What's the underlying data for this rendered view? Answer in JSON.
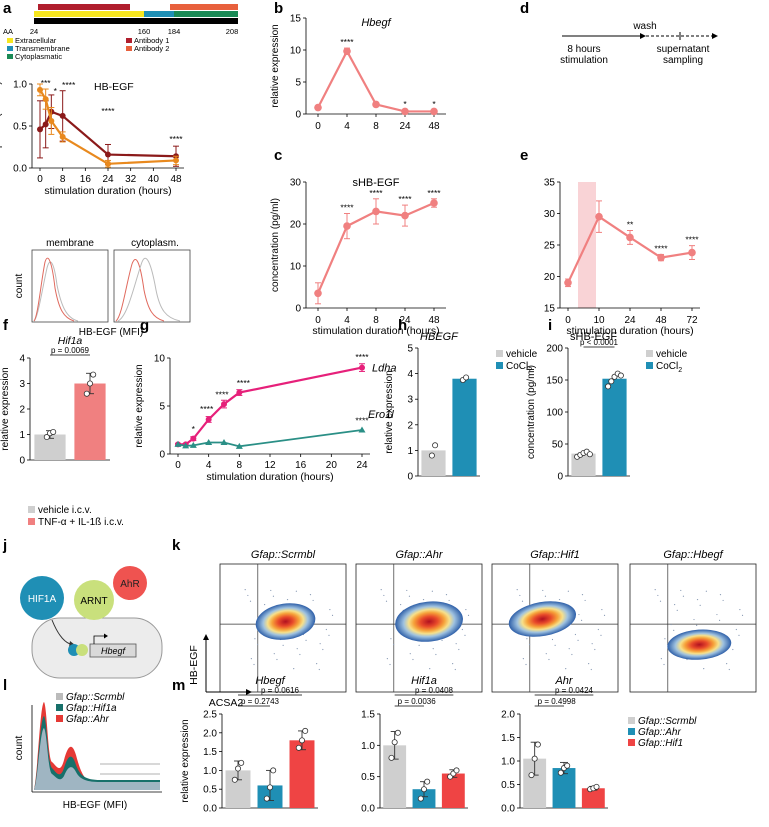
{
  "colors": {
    "salmon": "#f08080",
    "maroon": "#8b1a1a",
    "orange": "#e8891e",
    "magenta": "#e6207a",
    "teal": "#2a8f86",
    "grey": "#cfcfcf",
    "blue_bar": "#1f8fb5",
    "red_bar": "#ef4444",
    "shade": "#f9d3d6"
  },
  "panel_labels": {
    "a": "a",
    "b": "b",
    "c": "c",
    "d": "d",
    "e": "e",
    "f": "f",
    "g": "g",
    "h": "h",
    "i": "i",
    "j": "j",
    "k": "k",
    "l": "l",
    "m": "m"
  },
  "domain_map": {
    "aa_label": "AA",
    "ticks": [
      "24",
      "160",
      "184",
      "208"
    ],
    "legend": [
      "Extracellular",
      "Transmembrane",
      "Cytoplasmatic",
      "Antibody 1",
      "Antibody 2"
    ],
    "legend_colors": [
      "#f6e61f",
      "#1f8fb5",
      "#1a8a55",
      "#b01e2d",
      "#e8603c"
    ]
  },
  "flow_small": {
    "labels": [
      "membrane",
      "cytoplasm."
    ],
    "ylabel": "count",
    "xlabel": "HB-EGF (MFI)"
  },
  "panel_d": {
    "wash": "wash",
    "step1_line1": "8 hours",
    "step1_line2": "stimulation",
    "step2_line1": "supernatant",
    "step2_line2": "sampling"
  },
  "panel_j": {
    "hif1a": "HIF1A",
    "arnt": "ARNT",
    "ahr": "AhR",
    "gene": "Hbegf"
  },
  "panel_k": {
    "titles": [
      "Gfap::Scrmbl",
      "Gfap::Ahr",
      "Gfap::Hif1",
      "Gfap::Hbegf"
    ],
    "ylabel": "HB-EGF",
    "xlabel": "ACSA2"
  },
  "panel_l": {
    "legend": [
      "Gfap::Scrmbl",
      "Gfap::Hif1a",
      "Gfap::Ahr"
    ],
    "ylabel": "count",
    "xlabel": "HB-EGF (MFI)"
  },
  "chart_data": [
    {
      "id": "a",
      "type": "line",
      "title": "HB-EGF",
      "xlabel": "stimulation duration (hours)",
      "ylabel": "% of parent (scaled)",
      "xticks": [
        0,
        8,
        16,
        24,
        32,
        40,
        48
      ],
      "yticks": [
        "0.0",
        "0.5",
        "1.0"
      ],
      "xlim": [
        0,
        48
      ],
      "ylim": [
        0,
        1
      ],
      "series": [
        {
          "name": "Antibody 1",
          "color": "maroon",
          "x": [
            0,
            2,
            4,
            8,
            24,
            48
          ],
          "y": [
            0.46,
            0.52,
            0.67,
            0.62,
            0.16,
            0.14
          ],
          "err": [
            0.34,
            0.28,
            0.2,
            0.3,
            0.12,
            0.12
          ]
        },
        {
          "name": "Antibody 2",
          "color": "orange",
          "x": [
            0,
            2,
            4,
            8,
            24,
            48
          ],
          "y": [
            0.93,
            0.82,
            0.56,
            0.37,
            0.05,
            0.09
          ],
          "err": [
            0.07,
            0.12,
            0.16,
            0.06,
            0.04,
            0.05
          ]
        }
      ],
      "annotations": [
        {
          "x": 2,
          "text": "***"
        },
        {
          "x": 4,
          "text": "*"
        },
        {
          "x": 8,
          "text": "****"
        },
        {
          "x": 24,
          "text": "****"
        },
        {
          "x": 48,
          "text": "****"
        }
      ]
    },
    {
      "id": "b",
      "type": "line",
      "title": "Hbegf",
      "xlabel": "",
      "ylabel": "relative expression",
      "categories": [
        "0",
        "4",
        "8",
        "24",
        "48"
      ],
      "yticks": [
        "0",
        "5",
        "10",
        "15"
      ],
      "ylim": [
        0,
        15
      ],
      "series": [
        {
          "name": "Hbegf",
          "color": "salmon",
          "values": [
            1.0,
            9.8,
            1.5,
            0.4,
            0.4
          ],
          "err": [
            0.2,
            0.5,
            0.2,
            0.2,
            0.2
          ]
        }
      ],
      "annotations": [
        "",
        "****",
        "",
        "*",
        "*"
      ]
    },
    {
      "id": "c",
      "type": "line",
      "title": "sHB-EGF",
      "xlabel": "stimulation duration (hours)",
      "ylabel": "concentration (pg/ml)",
      "categories": [
        "0",
        "4",
        "8",
        "24",
        "48"
      ],
      "yticks": [
        "0",
        "10",
        "20",
        "30"
      ],
      "ylim": [
        0,
        30
      ],
      "series": [
        {
          "name": "sHB-EGF",
          "color": "salmon",
          "values": [
            3.5,
            19.5,
            23,
            22,
            25
          ],
          "err": [
            2.5,
            3,
            3,
            2.5,
            1
          ]
        }
      ],
      "annotations": [
        "",
        "****",
        "****",
        "****",
        "****"
      ]
    },
    {
      "id": "e",
      "type": "line",
      "title": "",
      "xlabel": "stimulation duration (hours)",
      "ylabel": "",
      "xticks": [
        0,
        10,
        24,
        48,
        72
      ],
      "xpos": [
        0,
        1,
        2,
        3,
        4
      ],
      "yticks": [
        "15",
        "20",
        "25",
        "30",
        "35"
      ],
      "ylim": [
        15,
        35
      ],
      "series": [
        {
          "name": "sHB-EGF",
          "color": "salmon",
          "x": [
            0,
            1,
            2,
            3,
            4
          ],
          "y": [
            19,
            29.5,
            26.2,
            23,
            23.8
          ],
          "err": [
            0.6,
            2.5,
            1.1,
            0.5,
            1.1
          ]
        }
      ],
      "annotations": [
        "",
        "",
        "**",
        "****",
        "****"
      ]
    },
    {
      "id": "f",
      "type": "bar",
      "title": "Hif1a",
      "pvalue": "p = 0.0069",
      "ylabel": "relative expression",
      "yticks": [
        "0",
        "1",
        "2",
        "3",
        "4"
      ],
      "ylim": [
        0,
        4
      ],
      "categories": [
        "vehicle i.c.v.",
        "TNF-α + IL-1ß i.c.v."
      ],
      "values": [
        1.0,
        3.0
      ],
      "err": [
        0.15,
        0.4
      ],
      "points": [
        [
          0.9,
          1.05,
          1.1
        ],
        [
          2.6,
          3.0,
          3.35
        ]
      ],
      "colors": [
        "grey",
        "salmon"
      ]
    },
    {
      "id": "g",
      "type": "line",
      "title": "",
      "xlabel": "stimulation duration (hours)",
      "ylabel": "relative expression",
      "xticks": [
        0,
        4,
        8,
        12,
        16,
        20,
        24
      ],
      "yticks": [
        "0",
        "5",
        "10"
      ],
      "xlim": [
        0,
        24
      ],
      "ylim": [
        0,
        10
      ],
      "series": [
        {
          "name": "Ldha",
          "color": "magenta",
          "x": [
            0,
            1,
            2,
            4,
            6,
            8,
            24
          ],
          "y": [
            1.0,
            1.0,
            1.6,
            3.6,
            5.2,
            6.4,
            9.0
          ],
          "err": [
            0.1,
            0.1,
            0.2,
            0.3,
            0.4,
            0.3,
            0.4
          ]
        },
        {
          "name": "Ero1l",
          "color": "teal",
          "x": [
            0,
            1,
            2,
            4,
            6,
            8,
            24
          ],
          "y": [
            1.0,
            0.85,
            0.9,
            1.2,
            1.2,
            0.8,
            2.5
          ],
          "err": [
            0.1,
            0.1,
            0.1,
            0.1,
            0.1,
            0.1,
            0.3
          ]
        }
      ],
      "annotations": [
        {
          "x": 2,
          "text": "*"
        },
        {
          "x": 4,
          "text": "****"
        },
        {
          "x": 6,
          "text": "****"
        },
        {
          "x": 8,
          "text": "****"
        },
        {
          "x": 24,
          "text": "****"
        },
        {
          "x": 24,
          "text": "****"
        }
      ]
    },
    {
      "id": "h",
      "type": "bar",
      "title": "HBEGF",
      "ylabel": "relative expression",
      "yticks": [
        "0",
        "1",
        "2",
        "3",
        "4",
        "5"
      ],
      "ylim": [
        0,
        5
      ],
      "legend": [
        "vehicle",
        "CoCl2"
      ],
      "categories": [
        "vehicle",
        "CoCl2"
      ],
      "values": [
        1.0,
        3.8
      ],
      "points": [
        [
          0.8,
          1.2
        ],
        [
          3.75,
          3.85
        ]
      ],
      "colors": [
        "grey",
        "blue_bar"
      ]
    },
    {
      "id": "i",
      "type": "bar",
      "title": "sHB-EGF",
      "pvalue": "p < 0.0001",
      "ylabel": "concentration (pg/ml)",
      "yticks": [
        "0",
        "50",
        "100",
        "150",
        "200"
      ],
      "ylim": [
        0,
        200
      ],
      "legend": [
        "vehicle",
        "CoCl2"
      ],
      "categories": [
        "vehicle",
        "CoCl2"
      ],
      "values": [
        35,
        152
      ],
      "points": [
        [
          30,
          33,
          36,
          38,
          34
        ],
        [
          140,
          148,
          155,
          160,
          157
        ]
      ],
      "colors": [
        "grey",
        "blue_bar"
      ]
    },
    {
      "id": "m1",
      "type": "bar",
      "title": "Hbegf",
      "ylabel": "relative expression",
      "yticks": [
        "0.0",
        "0.5",
        "1.0",
        "1.5",
        "2.0",
        "2.5"
      ],
      "ylim": [
        0,
        2.5
      ],
      "categories": [
        "Gfap::Scrmbl",
        "Gfap::Ahr",
        "Gfap::Hif1"
      ],
      "values": [
        1.0,
        0.6,
        1.8
      ],
      "err": [
        0.25,
        0.4,
        0.25
      ],
      "points": [
        [
          0.75,
          1.05,
          1.2
        ],
        [
          0.25,
          0.55,
          1.0
        ],
        [
          1.6,
          1.8,
          2.05
        ]
      ],
      "colors": [
        "grey",
        "blue_bar",
        "red_bar"
      ],
      "pvalues": [
        "p = 0.0616",
        "p = 0.2743"
      ]
    },
    {
      "id": "m2",
      "type": "bar",
      "title": "Hif1a",
      "ylabel": "",
      "yticks": [
        "0.0",
        "0.5",
        "1.0",
        "1.5"
      ],
      "ylim": [
        0,
        1.5
      ],
      "categories": [
        "Gfap::Scrmbl",
        "Gfap::Ahr",
        "Gfap::Hif1"
      ],
      "values": [
        1.0,
        0.3,
        0.55
      ],
      "err": [
        0.22,
        0.12,
        0.06
      ],
      "points": [
        [
          0.8,
          1.05,
          1.2
        ],
        [
          0.15,
          0.3,
          0.42
        ],
        [
          0.5,
          0.55,
          0.6
        ]
      ],
      "colors": [
        "grey",
        "blue_bar",
        "red_bar"
      ],
      "pvalues": [
        "p = 0.0408",
        "p = 0.0036"
      ]
    },
    {
      "id": "m3",
      "type": "bar",
      "title": "Ahr",
      "ylabel": "",
      "yticks": [
        "0.0",
        "0.5",
        "1.0",
        "1.5",
        "2.0"
      ],
      "ylim": [
        0,
        2.0
      ],
      "categories": [
        "Gfap::Scrmbl",
        "Gfap::Ahr",
        "Gfap::Hif1"
      ],
      "values": [
        1.05,
        0.85,
        0.42
      ],
      "err": [
        0.35,
        0.12,
        0.04
      ],
      "points": [
        [
          0.7,
          1.05,
          1.35
        ],
        [
          0.75,
          0.85,
          0.9
        ],
        [
          0.4,
          0.42,
          0.45
        ]
      ],
      "colors": [
        "grey",
        "blue_bar",
        "red_bar"
      ],
      "pvalues": [
        "p = 0.0424",
        "p = 0.4998"
      ]
    }
  ]
}
